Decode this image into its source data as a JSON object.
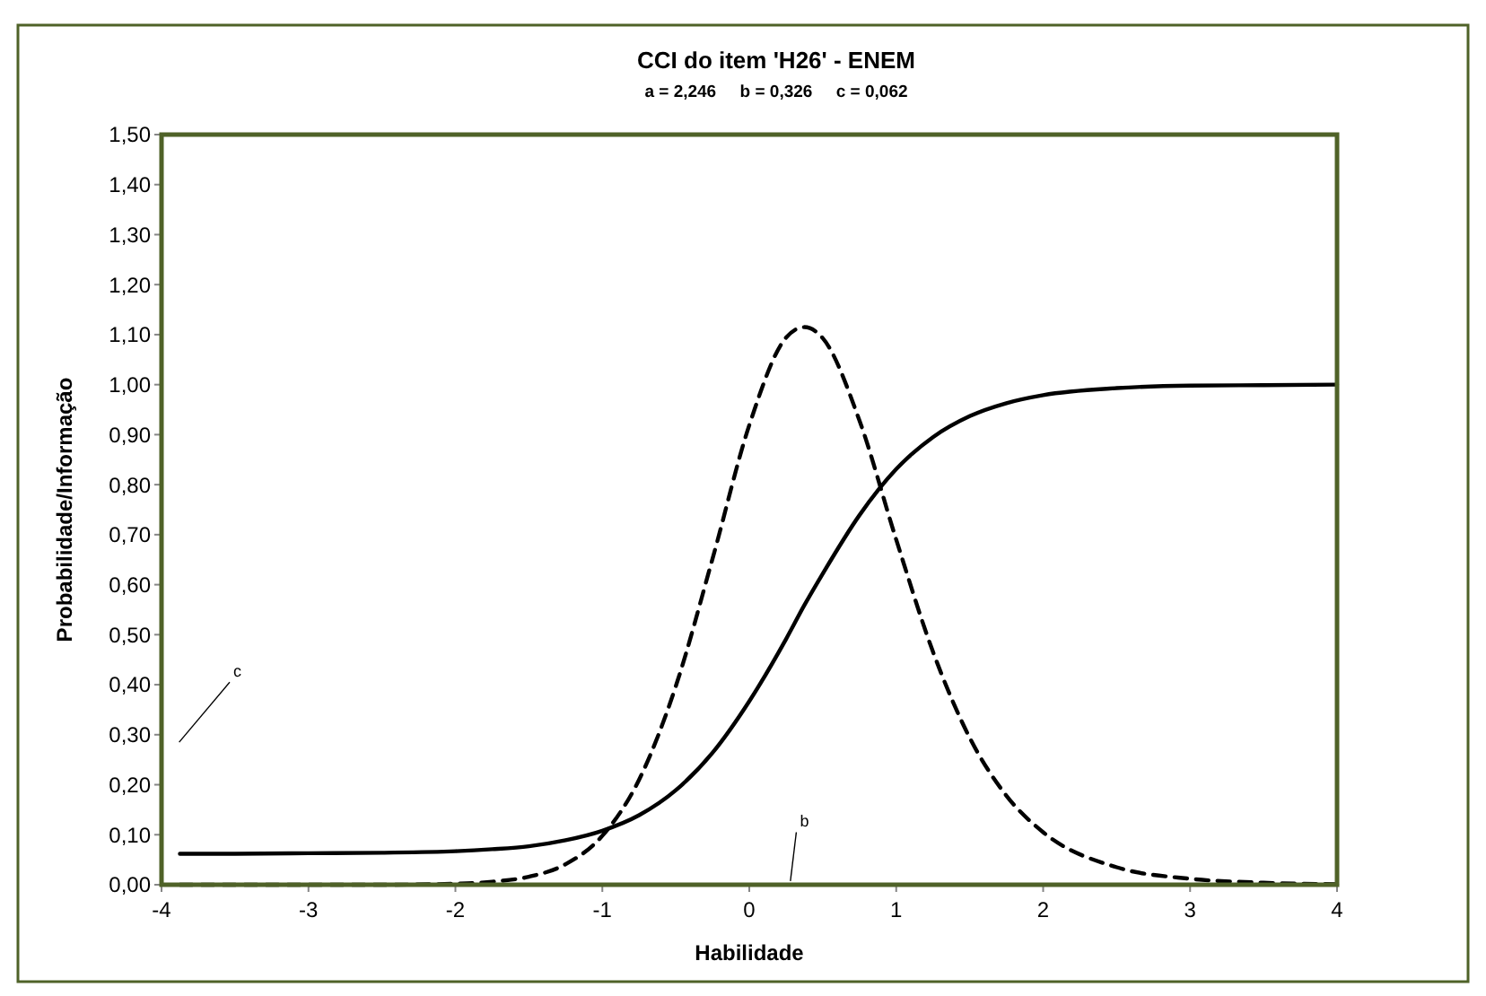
{
  "chart_data": {
    "type": "line",
    "title": "CCI do item 'H26' - ENEM",
    "subtitle": "a = 2,246     b = 0,326     c = 0,062",
    "xlabel": "Habilidade",
    "ylabel": "Probabilidade/Informação",
    "x": [
      -3.875,
      -3.5,
      -3,
      -2.5,
      -2,
      -1.75,
      -1.5,
      -1.25,
      -1,
      -0.75,
      -0.5,
      -0.25,
      0,
      0.25,
      0.375,
      0.5,
      0.75,
      1,
      1.25,
      1.5,
      1.75,
      2,
      2.5,
      3,
      3.5,
      4
    ],
    "series": [
      {
        "color": "#000000",
        "line_style": "solid",
        "values": [
          0.062,
          0.062,
          0.063,
          0.064,
          0.067,
          0.071,
          0.077,
          0.089,
          0.108,
          0.139,
          0.189,
          0.264,
          0.367,
          0.491,
          0.559,
          0.622,
          0.739,
          0.831,
          0.895,
          0.937,
          0.963,
          0.979,
          0.993,
          0.998,
          0.999,
          1.0
        ]
      },
      {
        "color": "#000000",
        "line_style": "dashed",
        "values": [
          0.0,
          0.0,
          0.0,
          0.0,
          0.002,
          0.006,
          0.016,
          0.041,
          0.098,
          0.21,
          0.397,
          0.652,
          0.919,
          1.094,
          1.115,
          1.093,
          0.928,
          0.69,
          0.466,
          0.294,
          0.178,
          0.105,
          0.035,
          0.012,
          0.004,
          0.001
        ]
      }
    ],
    "xlim": [
      -4,
      4
    ],
    "ylim": [
      0,
      1.5
    ],
    "xticks": [
      -4,
      -3,
      -2,
      -1,
      0,
      1,
      2,
      3,
      4
    ],
    "yticks": [
      {
        "value": 0,
        "label": "0,00"
      },
      {
        "value": 0.1,
        "label": "0,10"
      },
      {
        "value": 0.2,
        "label": "0,20"
      },
      {
        "value": 0.3,
        "label": "0,30"
      },
      {
        "value": 0.4,
        "label": "0,40"
      },
      {
        "value": 0.5,
        "label": "0,50"
      },
      {
        "value": 0.6,
        "label": "0,60"
      },
      {
        "value": 0.7,
        "label": "0,70"
      },
      {
        "value": 0.8,
        "label": "0,80"
      },
      {
        "value": 0.9,
        "label": "0,90"
      },
      {
        "value": 1,
        "label": "1,00"
      },
      {
        "value": 1.1,
        "label": "1,10"
      },
      {
        "value": 1.2,
        "label": "1,20"
      },
      {
        "value": 1.3,
        "label": "1,30"
      },
      {
        "value": 1.4,
        "label": "1,40"
      },
      {
        "value": 1.5,
        "label": "1,50"
      }
    ],
    "annotations": [
      "c",
      "b"
    ],
    "grid": false,
    "marker": "none"
  }
}
